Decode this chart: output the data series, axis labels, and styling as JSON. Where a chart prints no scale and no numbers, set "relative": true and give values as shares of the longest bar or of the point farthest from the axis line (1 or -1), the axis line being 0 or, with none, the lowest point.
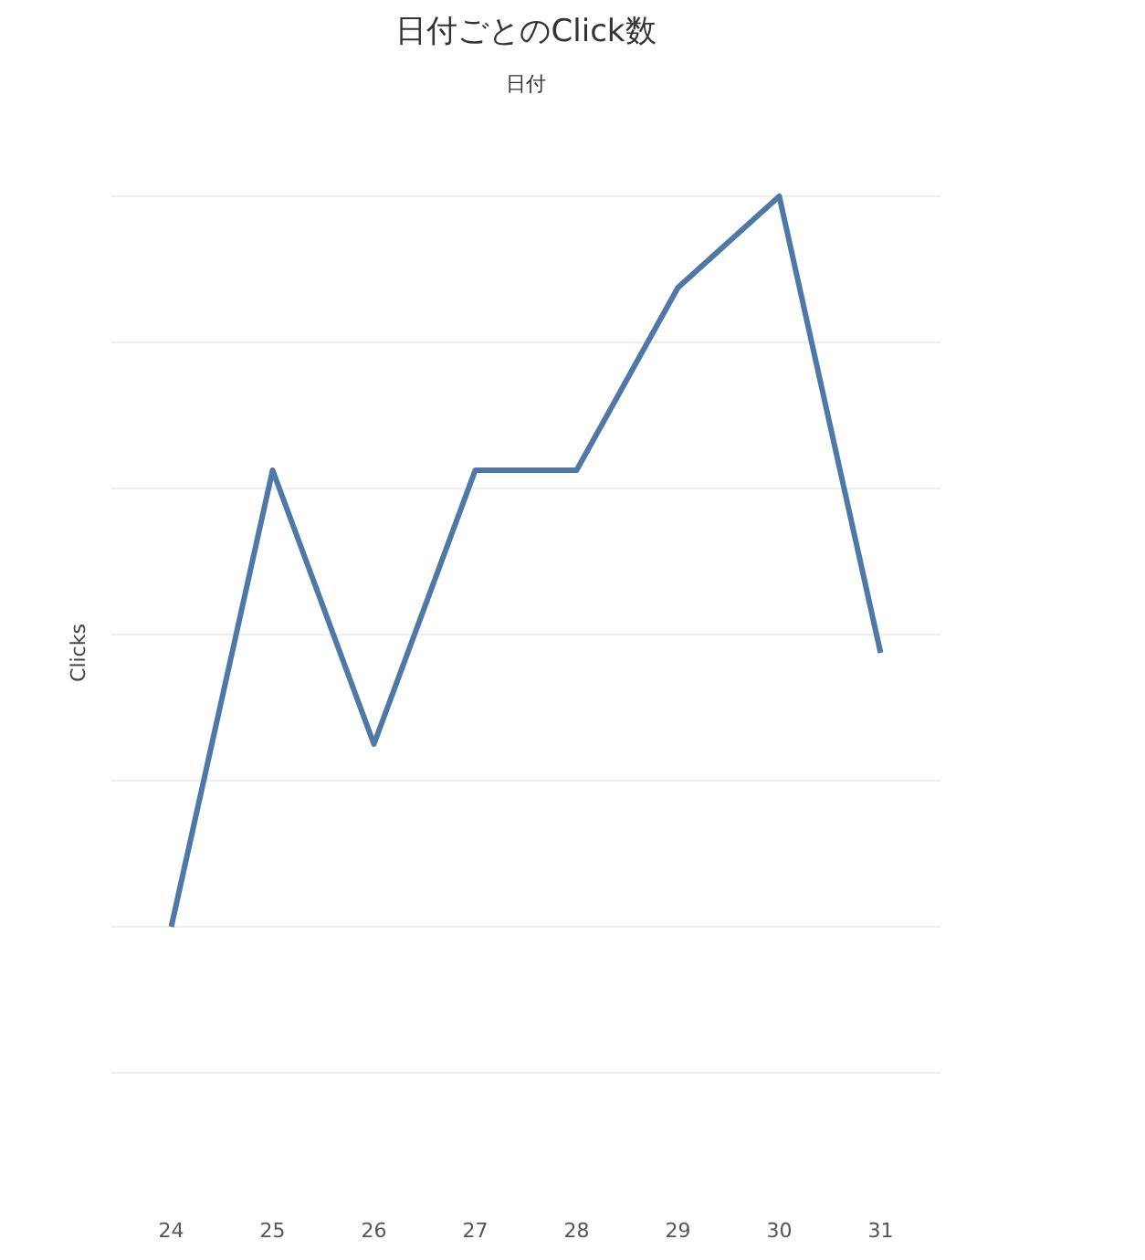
{
  "chart_data": {
    "type": "line",
    "title": "日付ごとのClick数",
    "xlabel": "日付",
    "ylabel": "Clicks",
    "categories": [
      "24",
      "25",
      "26",
      "27",
      "28",
      "29",
      "30",
      "31"
    ],
    "series": [
      {
        "color": "#4e79a7",
        "values": [
          0,
          0.625,
          0.25,
          0.625,
          0.625,
          0.875,
          1,
          0.375
        ]
      }
    ],
    "relative": true,
    "grid": "y",
    "marker": "none",
    "line_style": "solid",
    "tick_labels": "x"
  }
}
